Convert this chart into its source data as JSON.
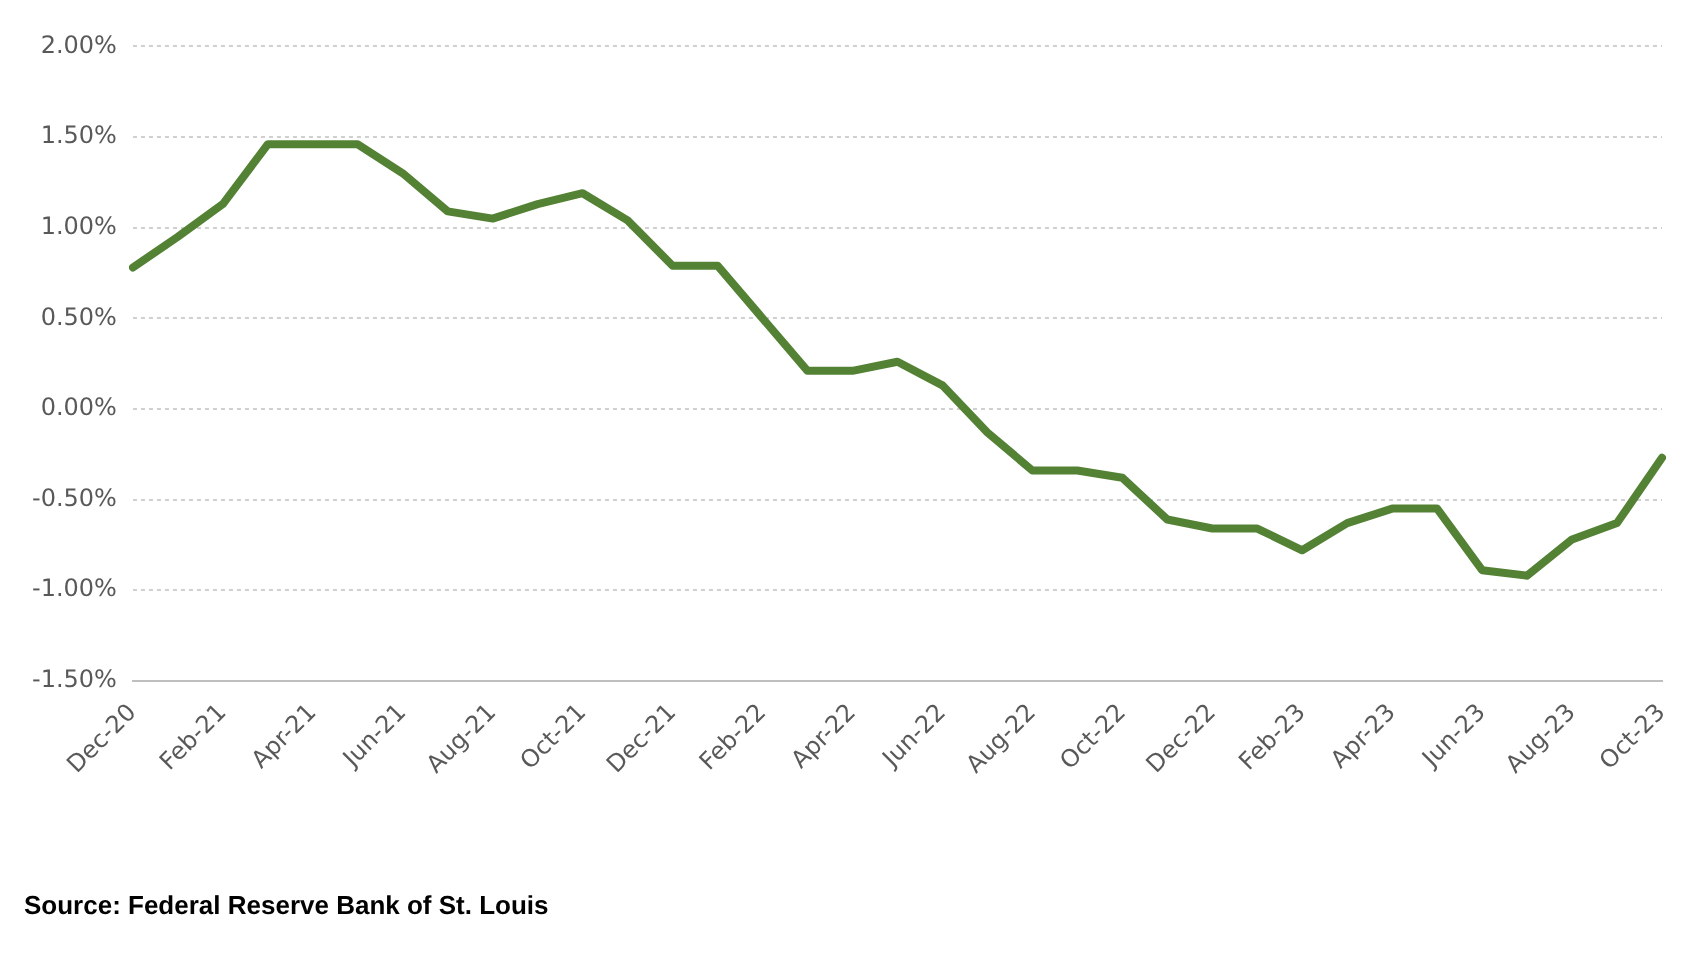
{
  "chart_data": {
    "type": "line",
    "categories": [
      "Dec-20",
      null,
      "Feb-21",
      null,
      "Apr-21",
      null,
      "Jun-21",
      null,
      "Aug-21",
      null,
      "Oct-21",
      null,
      "Dec-21",
      null,
      "Feb-22",
      null,
      "Apr-22",
      null,
      "Jun-22",
      null,
      "Aug-22",
      null,
      "Oct-22",
      null,
      "Dec-22",
      null,
      "Feb-23",
      null,
      "Apr-23",
      null,
      "Jun-23",
      null,
      "Aug-23",
      null,
      "Oct-23"
    ],
    "series": [
      {
        "color": "#548235",
        "values": [
          0.78,
          0.95,
          1.13,
          1.46,
          1.46,
          1.46,
          1.3,
          1.09,
          1.05,
          1.13,
          1.19,
          1.04,
          0.79,
          0.79,
          0.5,
          0.21,
          0.21,
          0.26,
          0.13,
          -0.13,
          -0.34,
          -0.34,
          -0.38,
          -0.61,
          -0.66,
          -0.66,
          -0.78,
          -0.63,
          -0.55,
          -0.55,
          -0.89,
          -0.92,
          -0.72,
          -0.63,
          -0.27
        ]
      }
    ],
    "ylim": [
      -1.5,
      2
    ],
    "yticks": [
      {
        "value": -1.5,
        "label": "-1.50%"
      },
      {
        "value": -1,
        "label": "-1.00%"
      },
      {
        "value": -0.5,
        "label": "-0.50%"
      },
      {
        "value": 0,
        "label": "0.00%"
      },
      {
        "value": 0.5,
        "label": "0.50%"
      },
      {
        "value": 1,
        "label": "1.00%"
      },
      {
        "value": 1.5,
        "label": "1.50%"
      },
      {
        "value": 2,
        "label": "2.00%"
      }
    ],
    "grid": "y",
    "legend": false,
    "marker": "none",
    "line_style": "solid",
    "annotations": [
      "Source:  Federal Reserve Bank of St. Louis"
    ]
  }
}
